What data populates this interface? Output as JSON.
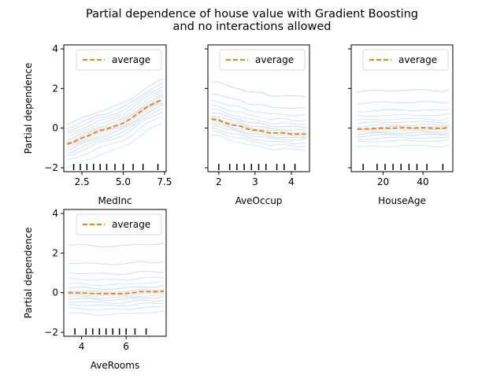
{
  "figure": {
    "title_line1": "Partial dependence of house value with Gradient Boosting",
    "title_line2": "and no interactions allowed"
  },
  "colors": {
    "ice": "#a6c8e0",
    "average": "#ff7f0e",
    "axis": "#000000",
    "rug": "#000000"
  },
  "chart_data": [
    {
      "type": "line",
      "xlabel": "MedInc",
      "ylabel": "Partial dependence",
      "xlim": [
        1.4,
        7.6
      ],
      "ylim": [
        -2.2,
        4.2
      ],
      "xticks": [
        2.5,
        5.0,
        7.5
      ],
      "xtick_labels": [
        "2.5",
        "5.0",
        "7.5"
      ],
      "yticks": [
        -2,
        0,
        2,
        4
      ],
      "ytick_labels": [
        "−2",
        "0",
        "2",
        "4"
      ],
      "show_yticklabels": true,
      "legend": {
        "label": "average",
        "placement": "top-right"
      },
      "x": [
        1.6,
        2.0,
        2.5,
        3.0,
        3.5,
        4.0,
        4.5,
        5.0,
        5.5,
        6.0,
        6.5,
        7.0,
        7.4
      ],
      "average": [
        -0.8,
        -0.7,
        -0.5,
        -0.35,
        -0.15,
        -0.05,
        0.1,
        0.25,
        0.5,
        0.8,
        1.1,
        1.3,
        1.45
      ],
      "ice_offsets": [
        -1.2,
        -0.85,
        -0.6,
        -0.45,
        -0.3,
        -0.2,
        -0.1,
        0.0,
        0.1,
        0.2,
        0.35,
        0.5,
        0.65,
        0.8,
        1.0
      ],
      "rug": [
        2.0,
        2.4,
        2.8,
        3.2,
        3.6,
        4.0,
        4.5,
        5.0,
        5.6,
        6.2,
        7.1
      ]
    },
    {
      "type": "line",
      "xlabel": "AveOccup",
      "ylabel": "",
      "xlim": [
        1.7,
        4.5
      ],
      "ylim": [
        -2.2,
        4.2
      ],
      "xticks": [
        2,
        3,
        4
      ],
      "xtick_labels": [
        "2",
        "3",
        "4"
      ],
      "yticks": [
        -2,
        0,
        2,
        4
      ],
      "ytick_labels": [],
      "show_yticklabels": false,
      "legend": {
        "label": "average",
        "placement": "top-right"
      },
      "x": [
        1.8,
        2.0,
        2.2,
        2.4,
        2.6,
        2.8,
        3.0,
        3.2,
        3.4,
        3.6,
        3.8,
        4.0,
        4.2,
        4.4
      ],
      "average": [
        0.45,
        0.4,
        0.25,
        0.15,
        0.1,
        -0.05,
        -0.1,
        -0.15,
        -0.25,
        -0.25,
        -0.25,
        -0.3,
        -0.3,
        -0.3
      ],
      "ice_offsets": [
        -0.8,
        -0.6,
        -0.45,
        -0.3,
        -0.2,
        -0.1,
        0.0,
        0.1,
        0.2,
        0.35,
        0.5,
        0.7,
        0.95,
        1.3,
        1.9
      ],
      "rug": [
        2.0,
        2.3,
        2.5,
        2.7,
        2.9,
        3.1,
        3.3,
        3.6,
        3.8,
        4.1
      ]
    },
    {
      "type": "line",
      "xlabel": "HouseAge",
      "ylabel": "",
      "xlim": [
        4,
        55
      ],
      "ylim": [
        -2.2,
        4.2
      ],
      "xticks": [
        20,
        40
      ],
      "xtick_labels": [
        "20",
        "40"
      ],
      "yticks": [
        -2,
        0,
        2,
        4
      ],
      "ytick_labels": [],
      "show_yticklabels": false,
      "legend": {
        "label": "average",
        "placement": "top-right"
      },
      "x": [
        7,
        10,
        15,
        20,
        25,
        30,
        35,
        40,
        45,
        50,
        53
      ],
      "average": [
        -0.05,
        -0.05,
        -0.02,
        0.0,
        0.0,
        0.02,
        0.0,
        0.02,
        0.0,
        -0.02,
        0.05
      ],
      "ice_offsets": [
        -0.9,
        -0.65,
        -0.5,
        -0.35,
        -0.25,
        -0.15,
        -0.05,
        0.05,
        0.15,
        0.3,
        0.45,
        0.65,
        0.9,
        1.3,
        1.9
      ],
      "rug": [
        10,
        17,
        21,
        25,
        29,
        33,
        37,
        42,
        50
      ]
    },
    {
      "type": "line",
      "xlabel": "AveRooms",
      "ylabel": "Partial dependence",
      "xlim": [
        3.2,
        7.8
      ],
      "ylim": [
        -2.2,
        4.2
      ],
      "xticks": [
        4,
        6
      ],
      "xtick_labels": [
        "4",
        "6"
      ],
      "yticks": [
        -2,
        0,
        2,
        4
      ],
      "ytick_labels": [
        "−2",
        "0",
        "2",
        "4"
      ],
      "show_yticklabels": true,
      "legend": {
        "label": "average",
        "placement": "top-right"
      },
      "x": [
        3.4,
        3.8,
        4.2,
        4.6,
        5.0,
        5.4,
        5.8,
        6.2,
        6.6,
        7.0,
        7.4,
        7.7
      ],
      "average": [
        0.0,
        0.0,
        -0.02,
        -0.05,
        -0.05,
        -0.05,
        -0.05,
        -0.02,
        0.05,
        0.05,
        0.05,
        0.08
      ],
      "ice_offsets": [
        -1.05,
        -0.8,
        -0.6,
        -0.45,
        -0.3,
        -0.2,
        -0.1,
        0.0,
        0.1,
        0.25,
        0.45,
        0.7,
        1.0,
        1.5,
        2.4
      ],
      "rug": [
        3.7,
        4.2,
        4.5,
        4.8,
        5.1,
        5.4,
        5.7,
        6.0,
        6.4,
        6.9
      ]
    }
  ]
}
